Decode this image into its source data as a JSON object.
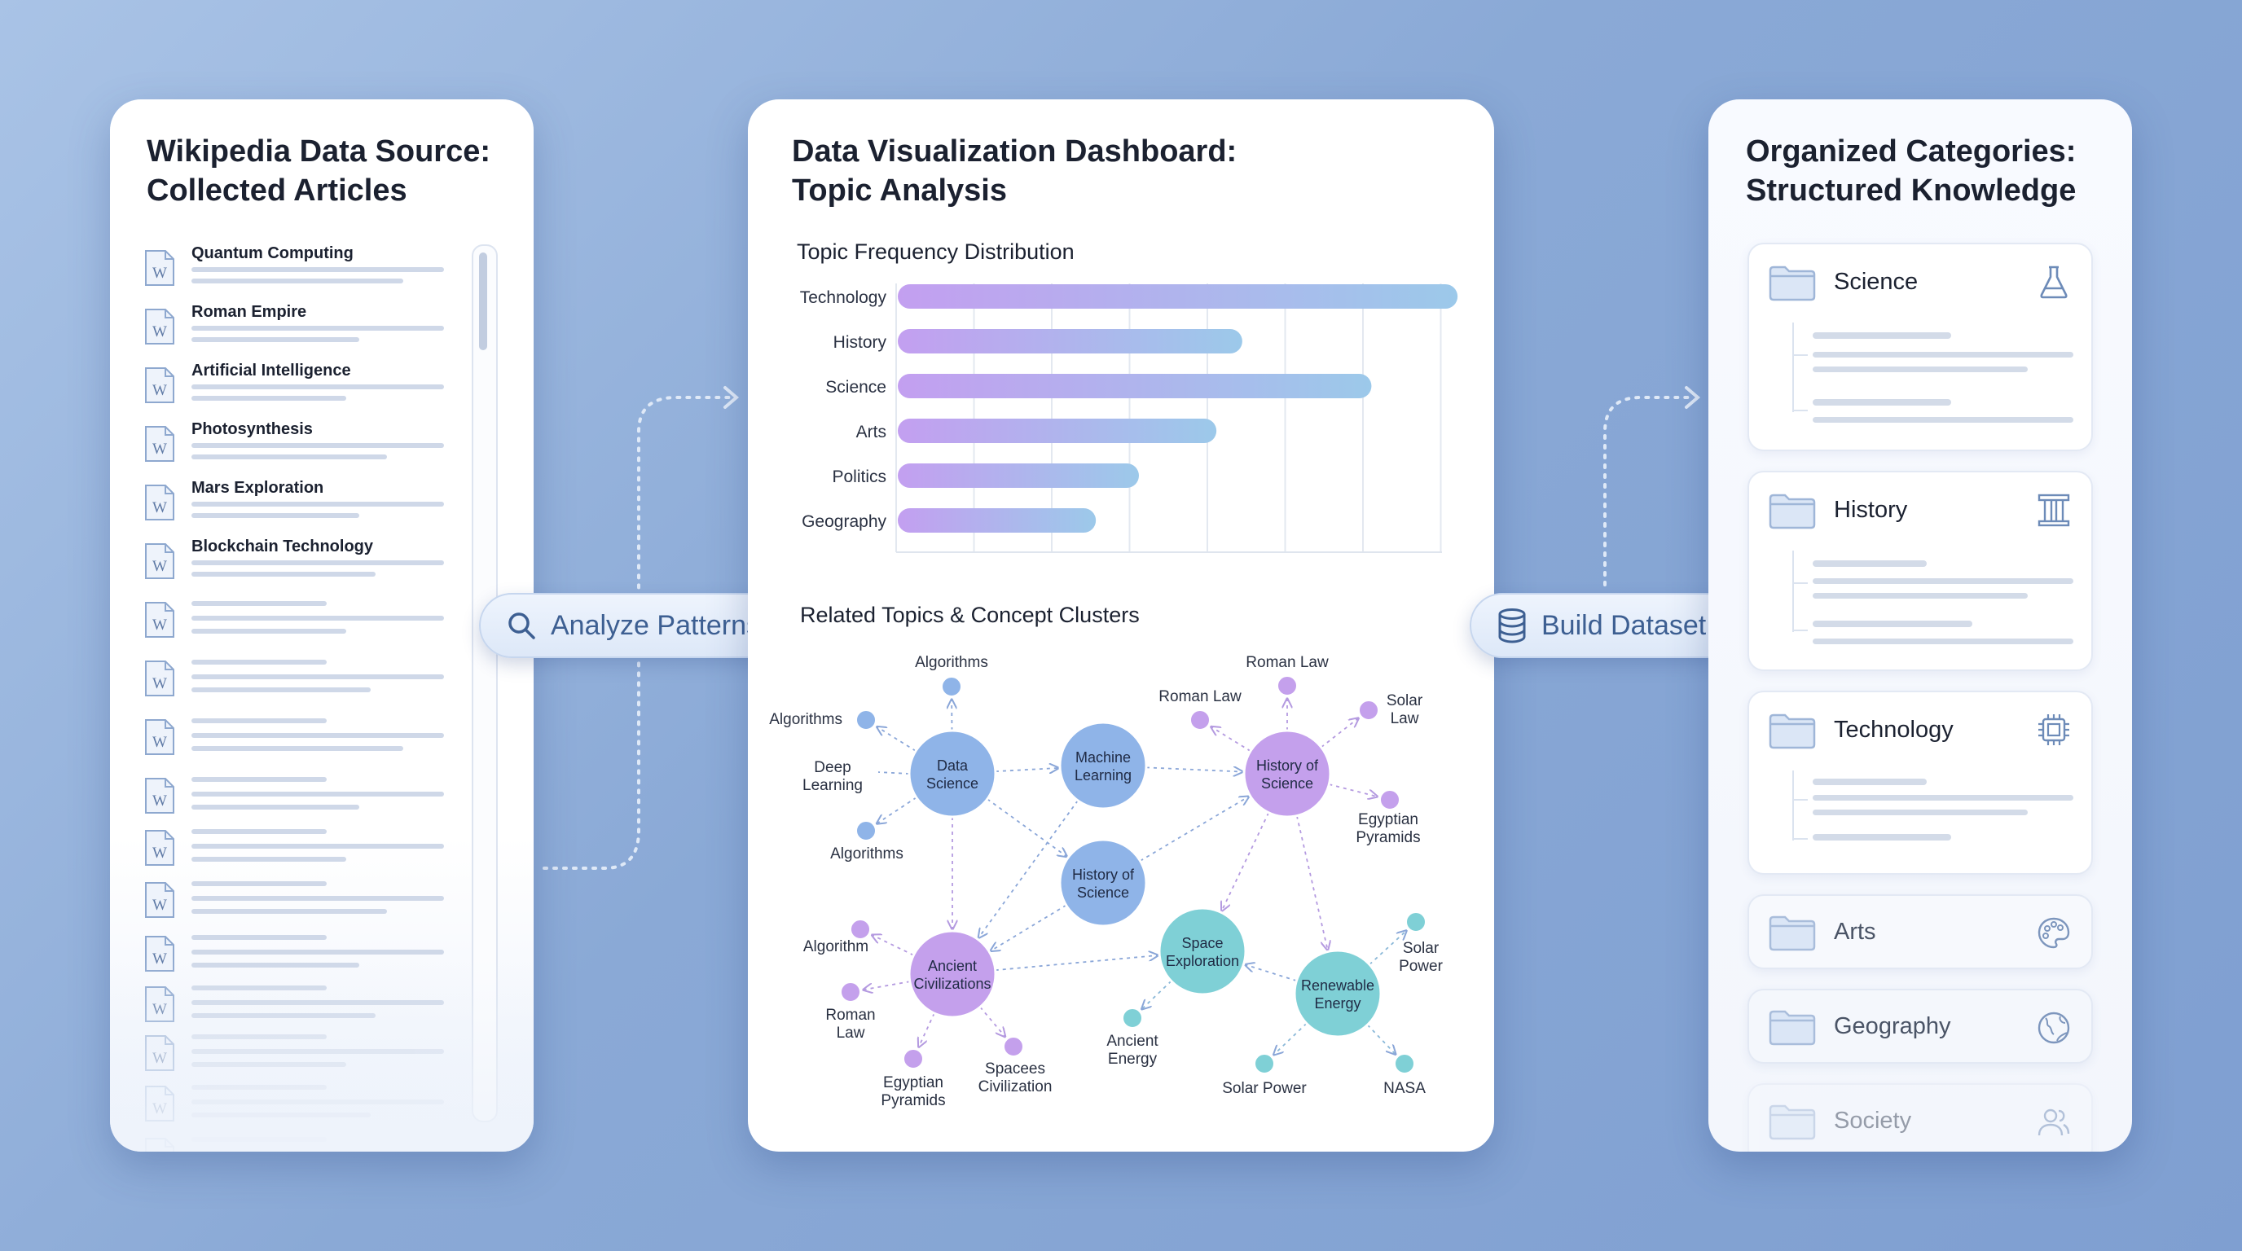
{
  "left_panel": {
    "title_line1": "Wikipedia Data Source:",
    "title_line2": "Collected Articles",
    "articles": [
      {
        "title": "Quantum Computing"
      },
      {
        "title": "Roman Empire"
      },
      {
        "title": "Artificial Intelligence"
      },
      {
        "title": "Photosynthesis"
      },
      {
        "title": "Mars Exploration"
      },
      {
        "title": "Blockchain Technology"
      }
    ],
    "doc_icon_letter": "W"
  },
  "actions": {
    "analyze_label": "Analyze Patterns",
    "build_label": "Build Dataset"
  },
  "middle_panel": {
    "title_line1": "Data Visualization Dashboard:",
    "title_line2": "Topic Analysis",
    "network_title": "Related Topics & Concept Clusters"
  },
  "chart_data": {
    "type": "bar",
    "orientation": "horizontal",
    "title": "Topic Frequency Distribution",
    "categories": [
      "Technology",
      "History",
      "Science",
      "Arts",
      "Politics",
      "Geography"
    ],
    "values": [
      65,
      40,
      55,
      37,
      28,
      23
    ],
    "xlim": [
      0,
      70
    ],
    "grid": true,
    "xlabel": "",
    "ylabel": ""
  },
  "network": {
    "hubs": [
      {
        "id": "data",
        "label1": "Data",
        "label2": "Science",
        "color": "#8fb4e8"
      },
      {
        "id": "ml",
        "label1": "Machine",
        "label2": "Learning",
        "color": "#8fb4e8"
      },
      {
        "id": "hos1",
        "label1": "History of",
        "label2": "Science",
        "color": "#c4a0ec"
      },
      {
        "id": "hos2",
        "label1": "History of",
        "label2": "Science",
        "color": "#8fb4e8"
      },
      {
        "id": "anc",
        "label1": "Ancient",
        "label2": "Civilizations",
        "color": "#c4a0ec"
      },
      {
        "id": "space",
        "label1": "Space",
        "label2": "Exploration",
        "color": "#7fd0d6"
      },
      {
        "id": "renew",
        "label1": "Renewable",
        "label2": "Energy",
        "color": "#7fd0d6"
      }
    ],
    "leaves": [
      {
        "label1": "Algorithms",
        "label2": "",
        "color": "#8fb4e8"
      },
      {
        "label1": "Algorithms",
        "label2": "",
        "color": "#8fb4e8"
      },
      {
        "label1": "Deep",
        "label2": "Learning",
        "color": "#8fb4e8"
      },
      {
        "label1": "Algorithms",
        "label2": "",
        "color": "#8fb4e8"
      },
      {
        "label1": "Roman Law",
        "label2": "",
        "color": "#c4a0ec"
      },
      {
        "label1": "Roman Law",
        "label2": "",
        "color": "#c4a0ec"
      },
      {
        "label1": "Solar",
        "label2": "Law",
        "color": "#c4a0ec"
      },
      {
        "label1": "Egyptian",
        "label2": "Pyramids",
        "color": "#c4a0ec"
      },
      {
        "label1": "Algorithm",
        "label2": "",
        "color": "#c4a0ec"
      },
      {
        "label1": "Roman",
        "label2": "Law",
        "color": "#c4a0ec"
      },
      {
        "label1": "Egyptian",
        "label2": "Pyramids",
        "color": "#c4a0ec"
      },
      {
        "label1": "Spacees",
        "label2": "Civilization",
        "color": "#c4a0ec"
      },
      {
        "label1": "Ancient",
        "label2": "Energy",
        "color": "#7fd0d6"
      },
      {
        "label1": "Solar Power",
        "label2": "",
        "color": "#7fd0d6"
      },
      {
        "label1": "NASA",
        "label2": "",
        "color": "#7fd0d6"
      },
      {
        "label1": "Solar",
        "label2": "Power",
        "color": "#7fd0d6"
      }
    ]
  },
  "right_panel": {
    "title_line1": "Organized Categories:",
    "title_line2": "Structured Knowledge",
    "categories": [
      {
        "label": "Science",
        "icon": "flask-icon"
      },
      {
        "label": "History",
        "icon": "column-icon"
      },
      {
        "label": "Technology",
        "icon": "chip-icon"
      },
      {
        "label": "Arts",
        "icon": "palette-icon"
      },
      {
        "label": "Geography",
        "icon": "globe-icon"
      },
      {
        "label": "Society",
        "icon": "people-icon"
      }
    ]
  },
  "colors": {
    "accent_blue": "#3d5f92",
    "bar_start": "#c39ff0",
    "bar_end": "#9cc9ea",
    "purple_node": "#c4a0ec",
    "blue_node": "#8fb4e8",
    "teal_node": "#7fd0d6"
  }
}
